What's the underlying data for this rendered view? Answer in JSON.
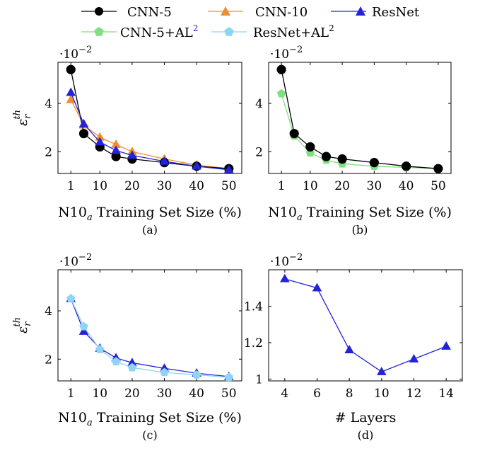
{
  "legend": {
    "items": [
      {
        "label": "CNN-5",
        "color": "#000000",
        "marker": "circle"
      },
      {
        "label": "CNN-10",
        "color": "#f28e2b",
        "marker": "triangle"
      },
      {
        "label": "ResNet",
        "color": "#2323d9",
        "marker": "triangle"
      },
      {
        "label": "CNN-5+AL",
        "sup": "2",
        "sup_color": "#2323d9",
        "color": "#7fe07f",
        "marker": "pentagon"
      },
      {
        "label": "ResNet+AL",
        "sup": "2",
        "sup_color": "#000000",
        "color": "#8fd3f5",
        "marker": "pentagon"
      }
    ]
  },
  "chart_data": [
    {
      "id": "a",
      "type": "line",
      "caption": "(a)",
      "xlabel": "N10a Training Set Size (%)",
      "ylabel": "ε_r^th",
      "scale_label": "·10−2",
      "x": [
        1,
        5,
        10,
        15,
        20,
        30,
        40,
        50
      ],
      "xticks": [
        1,
        10,
        20,
        30,
        40,
        50
      ],
      "yticks": [
        2,
        4
      ],
      "xlim": [
        -3,
        54
      ],
      "ylim": [
        1.1,
        5.7
      ],
      "series": [
        {
          "name": "CNN-10",
          "color": "#f28e2b",
          "marker": "triangle",
          "values": [
            4.15,
            3.1,
            2.6,
            2.3,
            2.0,
            1.7,
            1.45,
            1.3
          ]
        },
        {
          "name": "CNN-5",
          "color": "#000000",
          "marker": "circle",
          "values": [
            5.4,
            2.75,
            2.2,
            1.8,
            1.7,
            1.55,
            1.4,
            1.3
          ]
        },
        {
          "name": "ResNet",
          "color": "#2323d9",
          "marker": "triangle",
          "values": [
            4.45,
            3.15,
            2.4,
            2.05,
            1.85,
            1.6,
            1.4,
            1.25
          ]
        }
      ]
    },
    {
      "id": "b",
      "type": "line",
      "caption": "(b)",
      "xlabel": "N10a Training Set Size (%)",
      "ylabel": "",
      "scale_label": "·10−2",
      "x": [
        1,
        5,
        10,
        15,
        20,
        30,
        40,
        50
      ],
      "xticks": [
        1,
        10,
        20,
        30,
        40,
        50
      ],
      "yticks": [
        2,
        4
      ],
      "xlim": [
        -3,
        54
      ],
      "ylim": [
        1.1,
        5.7
      ],
      "series": [
        {
          "name": "CNN-5+AL2",
          "color": "#7fe07f",
          "marker": "pentagon",
          "values": [
            4.4,
            2.65,
            1.95,
            1.65,
            1.5,
            1.4,
            1.35,
            1.3
          ]
        },
        {
          "name": "CNN-5",
          "color": "#000000",
          "marker": "circle",
          "values": [
            5.4,
            2.75,
            2.2,
            1.8,
            1.7,
            1.55,
            1.4,
            1.3
          ]
        }
      ]
    },
    {
      "id": "c",
      "type": "line",
      "caption": "(c)",
      "xlabel": "N10a Training Set Size (%)",
      "ylabel": "ε_r^th",
      "scale_label": "·10−2",
      "x": [
        1,
        5,
        10,
        15,
        20,
        30,
        40,
        50
      ],
      "xticks": [
        1,
        10,
        20,
        30,
        40,
        50
      ],
      "yticks": [
        2,
        4
      ],
      "xlim": [
        -3,
        54
      ],
      "ylim": [
        1.1,
        5.7
      ],
      "series": [
        {
          "name": "ResNet",
          "color": "#2323d9",
          "marker": "triangle",
          "values": [
            4.5,
            3.15,
            2.45,
            2.05,
            1.85,
            1.62,
            1.42,
            1.28
          ]
        },
        {
          "name": "ResNet+AL2",
          "color": "#8fd3f5",
          "marker": "pentagon",
          "values": [
            4.5,
            3.35,
            2.4,
            1.9,
            1.65,
            1.45,
            1.35,
            1.25
          ]
        }
      ]
    },
    {
      "id": "d",
      "type": "line",
      "caption": "(d)",
      "xlabel": "# Layers",
      "ylabel": "",
      "scale_label": "·10−2",
      "x": [
        4,
        6,
        8,
        10,
        12,
        14
      ],
      "xticks": [
        4,
        6,
        8,
        10,
        12,
        14
      ],
      "yticks": [
        1,
        1.2,
        1.4
      ],
      "xlim": [
        3,
        15
      ],
      "ylim": [
        0.99,
        1.6
      ],
      "series": [
        {
          "name": "ResNet",
          "color": "#2323d9",
          "marker": "triangle",
          "values": [
            1.55,
            1.5,
            1.16,
            1.04,
            1.11,
            1.18
          ]
        }
      ]
    }
  ]
}
